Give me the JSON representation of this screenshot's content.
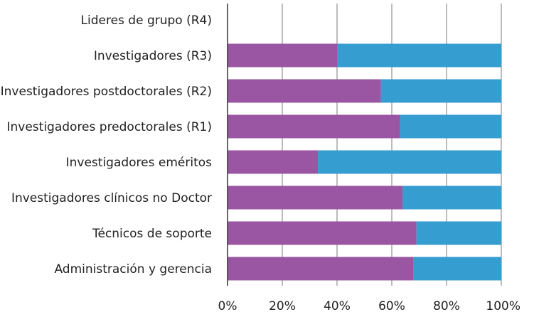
{
  "chart_data": {
    "type": "bar",
    "orientation": "horizontal",
    "stacked": true,
    "categories": [
      "Lideres de grupo (R4)",
      "Investigadores (R3)",
      "Investigadores postdoctorales (R2)",
      "Investigadores predoctorales (R1)",
      "Investigadores eméritos",
      "Investigadores clínicos no Doctor",
      "Técnicos de soporte",
      "Administración y gerencia"
    ],
    "series": [
      {
        "color": "#9b56a3",
        "values": [
          0,
          40,
          56,
          63,
          33,
          64,
          69,
          68
        ]
      },
      {
        "color": "#369dd1",
        "values": [
          0,
          60,
          44,
          37,
          67,
          36,
          31,
          32
        ]
      }
    ],
    "xlim": [
      0,
      100
    ],
    "xticks": [
      "0%",
      "20%",
      "40%",
      "60%",
      "80%",
      "100%"
    ],
    "grid": true,
    "legend": "none"
  }
}
